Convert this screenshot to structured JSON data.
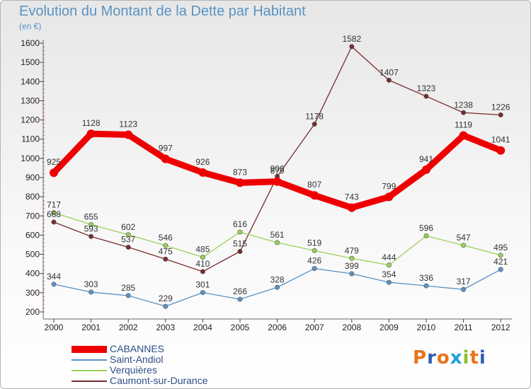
{
  "header": {
    "title": "Evolution du Montant de la Dette par Habitant",
    "unit": "(en €)"
  },
  "brand": {
    "text": "Proxiti",
    "colors": [
      "#e8731a",
      "#2f5db3",
      "#e8731a",
      "#1f9fd8",
      "#8bbf2a",
      "#e8731a",
      "#2f5db3"
    ]
  },
  "chart_data": {
    "type": "line",
    "title": "Evolution du Montant de la Dette par Habitant",
    "ylabel": "(en €)",
    "xlabel": "",
    "ylim": [
      200,
      1600
    ],
    "yticks": [
      200,
      300,
      400,
      500,
      600,
      700,
      800,
      900,
      1000,
      1100,
      1200,
      1300,
      1400,
      1500,
      1600
    ],
    "categories": [
      "2000",
      "2001",
      "2002",
      "2003",
      "2004",
      "2005",
      "2006",
      "2007",
      "2008",
      "2009",
      "2010",
      "2011",
      "2012"
    ],
    "grid": false,
    "legend_position": "bottom-left",
    "series": [
      {
        "name": "CABANNES",
        "color": "#ee0000",
        "values": [
          925,
          1128,
          1123,
          997,
          926,
          873,
          879,
          807,
          743,
          799,
          941,
          1119,
          1041
        ]
      },
      {
        "name": "Saint-Andiol",
        "color": "#5b93c6",
        "values": [
          344,
          303,
          285,
          229,
          301,
          266,
          328,
          426,
          399,
          354,
          336,
          317,
          421
        ]
      },
      {
        "name": "Verquières",
        "color": "#9ad157",
        "values": [
          717,
          655,
          602,
          546,
          485,
          616,
          561,
          519,
          479,
          444,
          596,
          547,
          495
        ]
      },
      {
        "name": "Caumont-sur-Durance",
        "color": "#7a2b2b",
        "values": [
          668,
          593,
          537,
          475,
          410,
          515,
          906,
          1178,
          1582,
          1407,
          1323,
          1238,
          1226
        ]
      }
    ]
  }
}
